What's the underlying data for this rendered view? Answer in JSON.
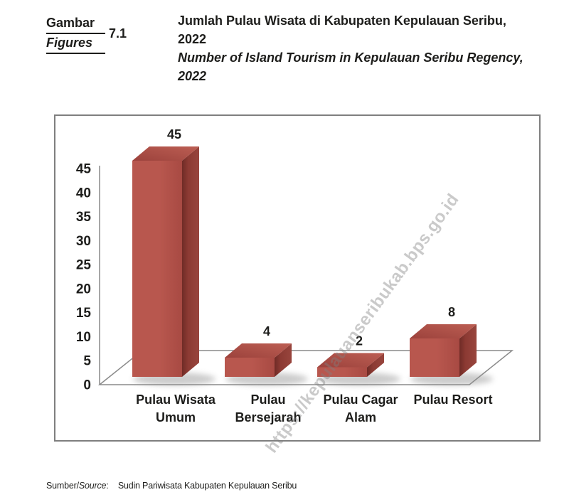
{
  "header": {
    "figure_label_id": "Gambar",
    "figure_label_en": "Figures",
    "figure_number": "7.1",
    "title_id": "Jumlah Pulau Wisata di Kabupaten Kepulauan Seribu, 2022",
    "title_en": "Number of Island Tourism in Kepulauan Seribu Regency, 2022"
  },
  "chart_data": {
    "type": "bar",
    "projection": "3d",
    "title": "Jumlah Pulau Wisata di Kabupaten Kepulauan Seribu, 2022",
    "categories": [
      "Pulau Wisata Umum",
      "Pulau Bersejarah",
      "Pulau Cagar Alam",
      "Pulau Resort"
    ],
    "category_lines": [
      [
        "Pulau Wisata",
        "Umum"
      ],
      [
        "Pulau",
        "Bersejarah"
      ],
      [
        "Pulau Cagar",
        "Alam"
      ],
      [
        "Pulau Resort"
      ]
    ],
    "values": [
      45,
      4,
      2,
      8
    ],
    "data_labels": [
      "45",
      "4",
      "2",
      "8"
    ],
    "y_ticks": [
      0,
      5,
      10,
      15,
      20,
      25,
      30,
      35,
      40,
      45
    ],
    "ylim": [
      0,
      45
    ],
    "grid": false,
    "legend": false,
    "xlabel": "",
    "ylabel": "",
    "colors": {
      "bar_front_light": "#b8574e",
      "bar_front_dark": "#a84a43",
      "bar_top_dark": "#9c423c",
      "bar_top_light": "#bc5e53",
      "bar_side_crease": "#6f2b26",
      "bar_side_mid": "#8c3a33",
      "bar_side_light": "#98453d",
      "axis_line": "#8a8a8a",
      "floor_fill": "#ffffff",
      "text": "#1d1d1b",
      "shadow": "#8f8f8f"
    }
  },
  "watermark": {
    "text": "https://kepulauanseribukab.bps.go.id"
  },
  "footer": {
    "source_label": "Sumber/",
    "source_label_italic": "Source",
    "source_separator": ":",
    "source_value": "Sudin Pariwisata Kabupaten Kepulauan Seribu"
  }
}
